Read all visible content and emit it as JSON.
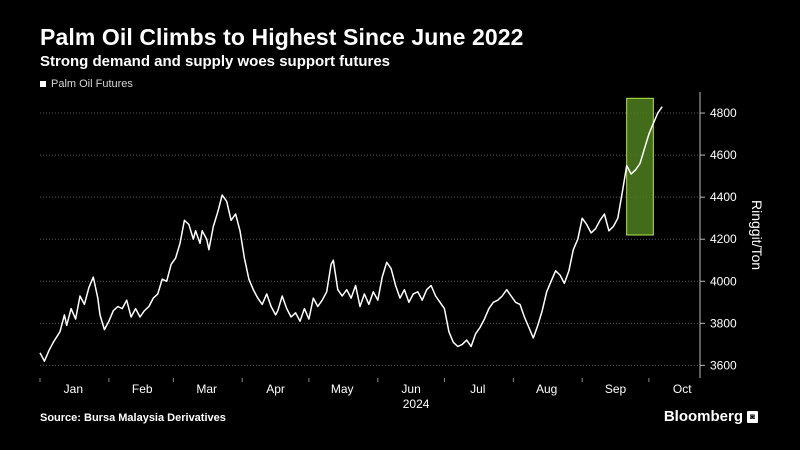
{
  "header": {
    "title": "Palm Oil Climbs to Highest Since June 2022",
    "subtitle": "Strong demand and supply woes support futures"
  },
  "legend": {
    "label": "Palm Oil Futures"
  },
  "footer": {
    "source": "Source: Bursa Malaysia Derivatives",
    "brand": "Bloomberg"
  },
  "colors": {
    "background": "#000000",
    "line": "#ffffff",
    "highlight_fill": "#4f7f1f",
    "highlight_stroke": "#b6e54c",
    "grid": "#5a5a5a",
    "text": "#ffffff"
  },
  "chart_data": {
    "type": "line",
    "title": "Palm Oil Climbs to Highest Since June 2022",
    "subtitle": "Strong demand and supply woes support futures",
    "ylabel": "Ringgit/Ton",
    "xlabel": "2024",
    "ylim": [
      3540,
      4900
    ],
    "xlim": [
      0,
      297
    ],
    "y_ticks": [
      3600,
      3800,
      4000,
      4200,
      4400,
      4600,
      4800
    ],
    "y_axis_position": "right",
    "grid": "horizontal dotted",
    "legend_position": "top-left",
    "x_ticks": [
      {
        "label": "Jan",
        "day": 15
      },
      {
        "label": "Feb",
        "day": 46
      },
      {
        "label": "Mar",
        "day": 75
      },
      {
        "label": "Apr",
        "day": 106
      },
      {
        "label": "May",
        "day": 136
      },
      {
        "label": "Jun",
        "day": 167
      },
      {
        "label": "Jul",
        "day": 197
      },
      {
        "label": "Aug",
        "day": 228
      },
      {
        "label": "Sep",
        "day": 259
      },
      {
        "label": "Oct",
        "day": 289
      }
    ],
    "series": [
      {
        "name": "Palm Oil Futures",
        "points": [
          [
            0,
            3660
          ],
          [
            2,
            3620
          ],
          [
            4,
            3670
          ],
          [
            6,
            3710
          ],
          [
            9,
            3760
          ],
          [
            11,
            3840
          ],
          [
            12,
            3790
          ],
          [
            14,
            3870
          ],
          [
            16,
            3820
          ],
          [
            18,
            3930
          ],
          [
            20,
            3890
          ],
          [
            22,
            3970
          ],
          [
            24,
            4020
          ],
          [
            26,
            3920
          ],
          [
            27,
            3840
          ],
          [
            29,
            3770
          ],
          [
            31,
            3810
          ],
          [
            33,
            3860
          ],
          [
            35,
            3880
          ],
          [
            37,
            3870
          ],
          [
            39,
            3910
          ],
          [
            41,
            3830
          ],
          [
            43,
            3870
          ],
          [
            45,
            3830
          ],
          [
            47,
            3860
          ],
          [
            49,
            3880
          ],
          [
            51,
            3920
          ],
          [
            53,
            3940
          ],
          [
            55,
            4010
          ],
          [
            57,
            4000
          ],
          [
            59,
            4080
          ],
          [
            61,
            4110
          ],
          [
            63,
            4180
          ],
          [
            65,
            4290
          ],
          [
            67,
            4270
          ],
          [
            69,
            4200
          ],
          [
            70,
            4240
          ],
          [
            72,
            4180
          ],
          [
            73,
            4240
          ],
          [
            75,
            4200
          ],
          [
            76,
            4150
          ],
          [
            78,
            4260
          ],
          [
            80,
            4330
          ],
          [
            82,
            4410
          ],
          [
            84,
            4380
          ],
          [
            86,
            4290
          ],
          [
            88,
            4320
          ],
          [
            90,
            4240
          ],
          [
            92,
            4110
          ],
          [
            94,
            4010
          ],
          [
            96,
            3960
          ],
          [
            98,
            3920
          ],
          [
            100,
            3890
          ],
          [
            102,
            3940
          ],
          [
            104,
            3880
          ],
          [
            106,
            3840
          ],
          [
            107,
            3860
          ],
          [
            109,
            3930
          ],
          [
            111,
            3870
          ],
          [
            113,
            3830
          ],
          [
            115,
            3850
          ],
          [
            117,
            3810
          ],
          [
            119,
            3870
          ],
          [
            121,
            3820
          ],
          [
            123,
            3920
          ],
          [
            125,
            3880
          ],
          [
            127,
            3910
          ],
          [
            129,
            3950
          ],
          [
            131,
            4080
          ],
          [
            132,
            4100
          ],
          [
            134,
            3960
          ],
          [
            136,
            3930
          ],
          [
            138,
            3960
          ],
          [
            140,
            3920
          ],
          [
            142,
            3980
          ],
          [
            144,
            3880
          ],
          [
            146,
            3940
          ],
          [
            148,
            3890
          ],
          [
            150,
            3950
          ],
          [
            152,
            3910
          ],
          [
            154,
            4020
          ],
          [
            156,
            4090
          ],
          [
            158,
            4060
          ],
          [
            160,
            3980
          ],
          [
            162,
            3920
          ],
          [
            164,
            3960
          ],
          [
            166,
            3900
          ],
          [
            168,
            3940
          ],
          [
            170,
            3950
          ],
          [
            172,
            3910
          ],
          [
            174,
            3960
          ],
          [
            176,
            3980
          ],
          [
            178,
            3930
          ],
          [
            180,
            3900
          ],
          [
            182,
            3870
          ],
          [
            184,
            3760
          ],
          [
            186,
            3710
          ],
          [
            188,
            3690
          ],
          [
            190,
            3700
          ],
          [
            192,
            3720
          ],
          [
            194,
            3690
          ],
          [
            196,
            3750
          ],
          [
            198,
            3780
          ],
          [
            200,
            3820
          ],
          [
            202,
            3870
          ],
          [
            204,
            3900
          ],
          [
            206,
            3910
          ],
          [
            208,
            3930
          ],
          [
            210,
            3960
          ],
          [
            212,
            3930
          ],
          [
            214,
            3900
          ],
          [
            216,
            3890
          ],
          [
            218,
            3830
          ],
          [
            220,
            3780
          ],
          [
            222,
            3730
          ],
          [
            224,
            3790
          ],
          [
            226,
            3860
          ],
          [
            228,
            3950
          ],
          [
            230,
            4000
          ],
          [
            232,
            4050
          ],
          [
            234,
            4030
          ],
          [
            236,
            3990
          ],
          [
            238,
            4050
          ],
          [
            240,
            4150
          ],
          [
            242,
            4200
          ],
          [
            244,
            4300
          ],
          [
            246,
            4270
          ],
          [
            248,
            4230
          ],
          [
            250,
            4250
          ],
          [
            252,
            4290
          ],
          [
            254,
            4320
          ],
          [
            256,
            4240
          ],
          [
            258,
            4260
          ],
          [
            260,
            4300
          ],
          [
            262,
            4420
          ],
          [
            264,
            4550
          ],
          [
            266,
            4510
          ],
          [
            268,
            4530
          ],
          [
            270,
            4560
          ],
          [
            272,
            4630
          ],
          [
            274,
            4700
          ],
          [
            276,
            4750
          ],
          [
            278,
            4800
          ],
          [
            280,
            4830
          ]
        ]
      }
    ],
    "highlight": {
      "day_start": 264,
      "day_end": 276,
      "y_start": 4220,
      "y_end": 4870
    }
  }
}
